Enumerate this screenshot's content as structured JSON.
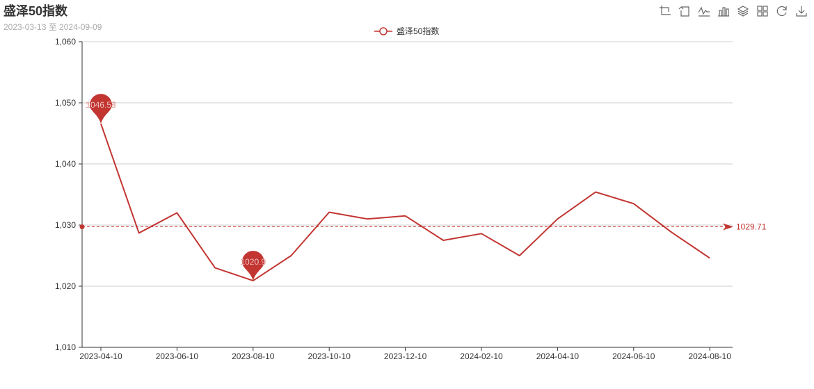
{
  "header": {
    "title": "盛泽50指数",
    "subtitle": "2023-03-13 至 2024-09-09"
  },
  "toolbox": [
    {
      "name": "data-zoom-icon"
    },
    {
      "name": "zoom-reset-icon"
    },
    {
      "name": "line-chart-icon"
    },
    {
      "name": "bar-chart-icon"
    },
    {
      "name": "stack-icon"
    },
    {
      "name": "tiled-icon"
    },
    {
      "name": "restore-icon"
    },
    {
      "name": "save-image-icon"
    }
  ],
  "colors": {
    "series": "#c23531",
    "grid": "#cccccc",
    "axis": "#333333"
  },
  "chart_data": {
    "type": "line",
    "x": [
      "2023-04-10",
      "2023-05-10",
      "2023-06-10",
      "2023-07-10",
      "2023-08-10",
      "2023-09-10",
      "2023-10-10",
      "2023-11-10",
      "2023-12-10",
      "2024-01-10",
      "2024-02-10",
      "2024-03-10",
      "2024-04-10",
      "2024-05-10",
      "2024-06-10",
      "2024-07-10",
      "2024-08-10"
    ],
    "x_ticks": [
      "2023-04-10",
      "2023-06-10",
      "2023-08-10",
      "2023-10-10",
      "2023-12-10",
      "2024-02-10",
      "2024-04-10",
      "2024-06-10",
      "2024-08-10"
    ],
    "series": [
      {
        "name": "盛泽50指数",
        "values": [
          1046.58,
          1028.7,
          1032.0,
          1023.0,
          1020.9,
          1025.0,
          1032.1,
          1031.0,
          1031.5,
          1027.5,
          1028.6,
          1025.0,
          1031.0,
          1035.4,
          1033.5,
          1028.8,
          1024.6
        ]
      }
    ],
    "ylim": [
      1010,
      1060
    ],
    "y_ticks": [
      1010,
      1020,
      1030,
      1040,
      1050,
      1060
    ],
    "y_tick_labels": [
      "1,010",
      "1,020",
      "1,030",
      "1,040",
      "1,050",
      "1,060"
    ],
    "mark_points": [
      {
        "label": "1046.58",
        "x": "2023-04-10",
        "value": 1046.58
      },
      {
        "label": "1020.9",
        "x": "2023-08-10",
        "value": 1020.9
      }
    ],
    "mark_line": {
      "label": "1029.71",
      "value": 1029.71
    },
    "grid": true,
    "legend_position": "top-center"
  }
}
